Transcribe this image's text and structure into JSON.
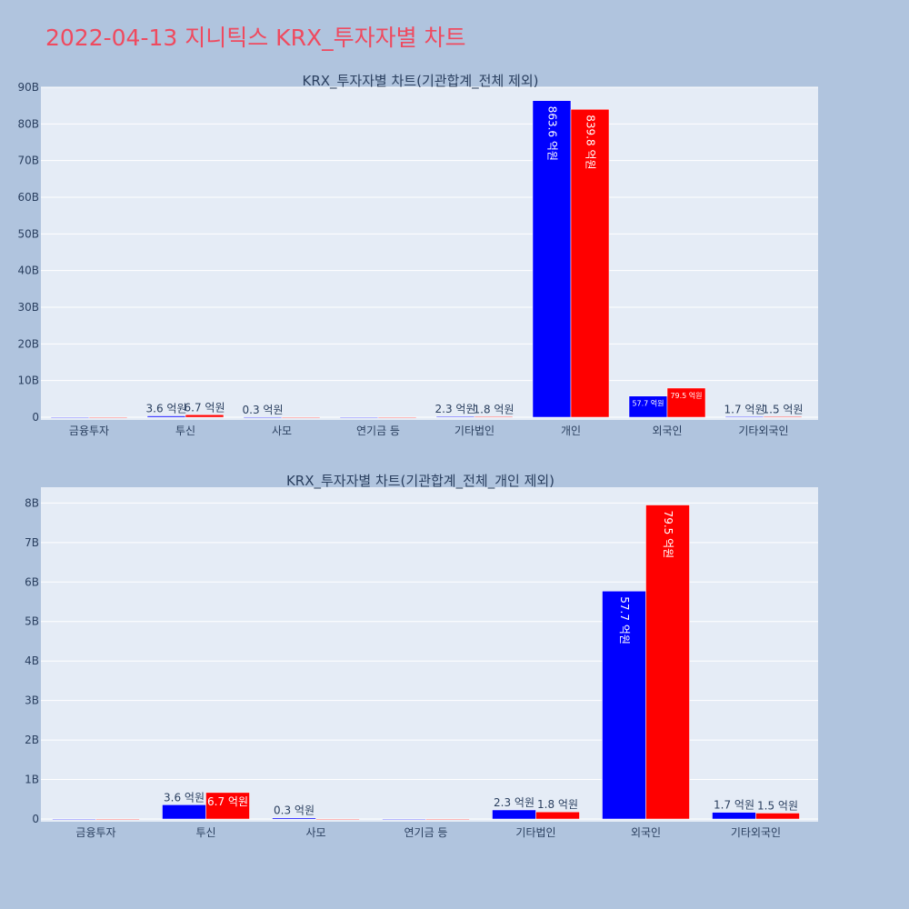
{
  "page_title": "2022-04-13 지니틱스 KRX_투자자별 차트",
  "colors": {
    "background": "#b0c4de",
    "plot_bg": "#e5ecf6",
    "series_a": "#0000ff",
    "series_b": "#ff0000",
    "title": "#ef4a5f"
  },
  "chart_data": [
    {
      "type": "bar",
      "title": "KRX_투자자별 차트(기관합계_전체 제외)",
      "categories": [
        "금융투자",
        "투신",
        "사모",
        "연기금 등",
        "기타법인",
        "개인",
        "외국인",
        "기타외국인"
      ],
      "ylim": [
        0,
        90000000000
      ],
      "yticks": [
        0,
        10000000000,
        20000000000,
        30000000000,
        40000000000,
        50000000000,
        60000000000,
        70000000000,
        80000000000,
        90000000000
      ],
      "ytick_labels": [
        "0",
        "10B",
        "20B",
        "30B",
        "40B",
        "50B",
        "60B",
        "70B",
        "80B",
        "90B"
      ],
      "grid": true,
      "legend": "none",
      "series": [
        {
          "color": "#0000ff",
          "values": [
            0,
            360000000,
            30000000,
            0,
            230000000,
            86360000000,
            5770000000,
            170000000
          ],
          "labels": [
            "",
            "3.6 억원",
            "0.3 억원",
            "",
            "2.3 억원",
            "863.6 억원",
            "57.7 억원",
            "1.7 억원"
          ]
        },
        {
          "color": "#ff0000",
          "values": [
            0,
            670000000,
            0,
            0,
            180000000,
            83980000000,
            7950000000,
            150000000
          ],
          "labels": [
            "",
            "6.7 억원",
            "",
            "",
            "1.8 억원",
            "839.8 억원",
            "79.5 억원",
            "1.5 억원"
          ]
        }
      ]
    },
    {
      "type": "bar",
      "title": "KRX_투자자별 차트(기관합계_전체_개인 제외)",
      "categories": [
        "금융투자",
        "투신",
        "사모",
        "연기금 등",
        "기타법인",
        "외국인",
        "기타외국인"
      ],
      "ylim": [
        0,
        8400000000
      ],
      "yticks": [
        0,
        1000000000,
        2000000000,
        3000000000,
        4000000000,
        5000000000,
        6000000000,
        7000000000,
        8000000000
      ],
      "ytick_labels": [
        "0",
        "1B",
        "2B",
        "3B",
        "4B",
        "5B",
        "6B",
        "7B",
        "8B"
      ],
      "grid": true,
      "legend": "none",
      "series": [
        {
          "color": "#0000ff",
          "values": [
            0,
            360000000,
            30000000,
            0,
            230000000,
            5770000000,
            170000000
          ],
          "labels": [
            "",
            "3.6 억원",
            "0.3 억원",
            "",
            "2.3 억원",
            "57.7 억원",
            "1.7 억원"
          ]
        },
        {
          "color": "#ff0000",
          "values": [
            0,
            670000000,
            0,
            0,
            180000000,
            7950000000,
            150000000
          ],
          "labels": [
            "",
            "6.7 억원",
            "",
            "",
            "1.8 억원",
            "79.5 억원",
            "1.5 억원"
          ]
        }
      ]
    }
  ]
}
